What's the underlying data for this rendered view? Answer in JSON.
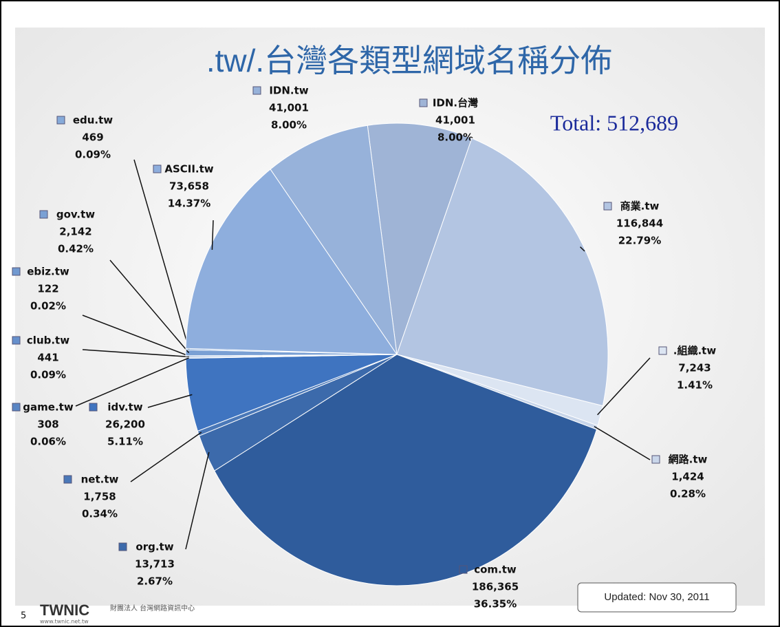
{
  "chart_data": {
    "type": "pie",
    "title": ".tw/.台灣各類型網域名稱分佈",
    "annotation": "Total: 512,689",
    "updated": "Updated: Nov 30, 2011",
    "page_number": "5",
    "logo": "TWNIC",
    "logo_subtitle": "財團法人 台灣網路資訊中心",
    "logo_url": "www.twnic.net.tw",
    "categories": [
      "IDN.台灣",
      "商業.tw",
      ".組織.tw",
      "網路.tw",
      "com.tw",
      "org.tw",
      "net.tw",
      "idv.tw",
      "game.tw",
      "club.tw",
      "ebiz.tw",
      "gov.tw",
      "edu.tw",
      "ASCII.tw",
      "IDN.tw"
    ],
    "values": [
      41001,
      116844,
      7243,
      1424,
      186365,
      13713,
      1758,
      26200,
      308,
      441,
      122,
      2142,
      469,
      73658,
      41001
    ],
    "value_labels": [
      "41,001",
      "116,844",
      "7,243",
      "1,424",
      "186,365",
      "13,713",
      "1,758",
      "26,200",
      "308",
      "441",
      "122",
      "2,142",
      "469",
      "73,658",
      "41,001"
    ],
    "percents": [
      8.0,
      22.79,
      1.41,
      0.28,
      36.35,
      2.67,
      0.34,
      5.11,
      0.06,
      0.09,
      0.02,
      0.42,
      0.09,
      14.37,
      8.0
    ],
    "percent_labels": [
      "8.00%",
      "22.79%",
      "1.41%",
      "0.28%",
      "36.35%",
      "2.67%",
      "0.34%",
      "5.11%",
      "0.06%",
      "0.09%",
      "0.02%",
      "0.42%",
      "0.09%",
      "14.37%",
      "8.00%"
    ],
    "colors": [
      "#9fb4d6",
      "#b3c5e2",
      "#dce5f2",
      "#c9d6ea",
      "#2f5c9c",
      "#3c6aab",
      "#4a78b8",
      "#3f74c0",
      "#5a86c4",
      "#6690cc",
      "#7199d0",
      "#7aa0d4",
      "#86aad9",
      "#8eaedd",
      "#97b2da"
    ]
  }
}
